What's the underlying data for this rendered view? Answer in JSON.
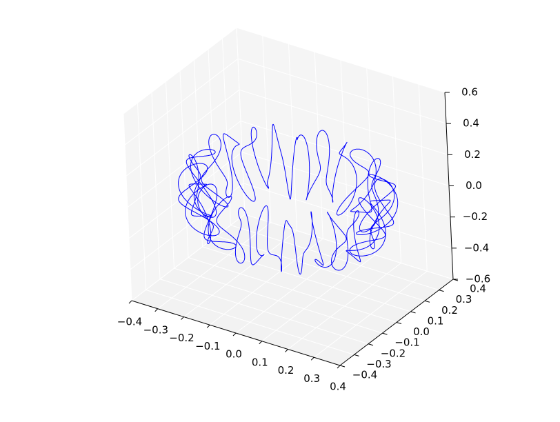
{
  "chart_data": {
    "type": "line",
    "projection": "3d",
    "title": "",
    "xlabel": "",
    "ylabel": "",
    "zlabel": "",
    "xlim": [
      -0.4,
      0.4
    ],
    "ylim": [
      -0.4,
      0.4
    ],
    "zlim": [
      -0.6,
      0.6
    ],
    "x_ticks": [
      "−0.4",
      "−0.3",
      "−0.2",
      "−0.1",
      "0.0",
      "0.1",
      "0.2",
      "0.3",
      "0.4"
    ],
    "y_ticks": [
      "−0.4",
      "−0.3",
      "−0.2",
      "−0.1",
      "0.0",
      "0.1",
      "0.2",
      "0.3",
      "0.4"
    ],
    "z_ticks": [
      "−0.6",
      "−0.4",
      "−0.2",
      "0.0",
      "0.2",
      "0.4",
      "0.6"
    ],
    "grid": true,
    "series": [
      {
        "color": "#0000ff",
        "shape": "helical wire coiled around a partial spherical band, open at the top (parametric curve)",
        "samples_xyz": [
          [
            0.35,
            0.0,
            0.0
          ],
          [
            0.32,
            0.14,
            -0.05
          ],
          [
            0.25,
            0.25,
            -0.1
          ],
          [
            0.14,
            0.32,
            -0.15
          ],
          [
            0.0,
            0.35,
            -0.2
          ],
          [
            -0.14,
            0.32,
            -0.25
          ],
          [
            -0.25,
            0.25,
            -0.3
          ],
          [
            -0.32,
            0.14,
            -0.32
          ],
          [
            -0.35,
            0.0,
            -0.33
          ],
          [
            -0.32,
            -0.14,
            -0.32
          ],
          [
            -0.25,
            -0.25,
            -0.3
          ],
          [
            -0.14,
            -0.32,
            -0.25
          ],
          [
            0.0,
            -0.35,
            -0.2
          ],
          [
            0.14,
            -0.32,
            -0.1
          ],
          [
            0.25,
            -0.25,
            0.05
          ],
          [
            0.32,
            -0.14,
            0.2
          ]
        ]
      }
    ]
  }
}
